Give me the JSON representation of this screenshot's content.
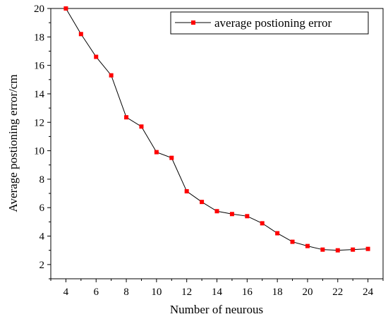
{
  "chart_data": {
    "type": "line",
    "title": "",
    "xlabel": "Number of neurous",
    "ylabel": "Average postioning error/cm",
    "xlim": [
      3,
      25
    ],
    "ylim": [
      1,
      20
    ],
    "xticks": [
      4,
      6,
      8,
      10,
      12,
      14,
      16,
      18,
      20,
      22,
      24
    ],
    "yticks": [
      2,
      4,
      6,
      8,
      10,
      12,
      14,
      16,
      18,
      20
    ],
    "legend_position": "top-right",
    "grid": false,
    "series": [
      {
        "name": "average postioning error",
        "color": "#ff0000",
        "line_color": "#000000",
        "marker": "square",
        "x": [
          4,
          5,
          6,
          7,
          8,
          9,
          10,
          11,
          12,
          13,
          14,
          15,
          16,
          17,
          18,
          19,
          20,
          21,
          22,
          23,
          24
        ],
        "values": [
          20.0,
          18.2,
          16.6,
          15.3,
          12.35,
          11.7,
          9.9,
          9.5,
          7.15,
          6.4,
          5.75,
          5.55,
          5.4,
          4.9,
          4.2,
          3.6,
          3.3,
          3.05,
          3.0,
          3.05,
          3.1
        ]
      }
    ]
  }
}
